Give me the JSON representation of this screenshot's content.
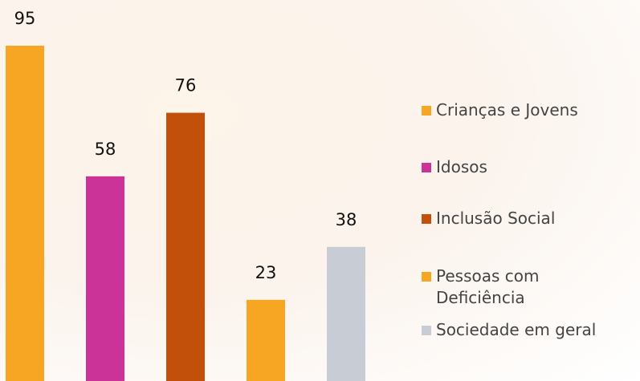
{
  "chart_data": {
    "type": "bar",
    "series": [
      {
        "name": "Crianças e Jovens",
        "color": "#f6a623",
        "values": [
          95
        ]
      },
      {
        "name": "Idosos",
        "color": "#cc3399",
        "values": [
          58
        ]
      },
      {
        "name": "Inclusão Social",
        "color": "#c3500a",
        "values": [
          76
        ]
      },
      {
        "name": "Pessoas com Deficiência",
        "color": "#f6a623",
        "values": [
          23
        ]
      },
      {
        "name": "Sociedade em geral",
        "color": "#c8ccd4",
        "values": [
          38
        ]
      }
    ],
    "legend": "right"
  }
}
